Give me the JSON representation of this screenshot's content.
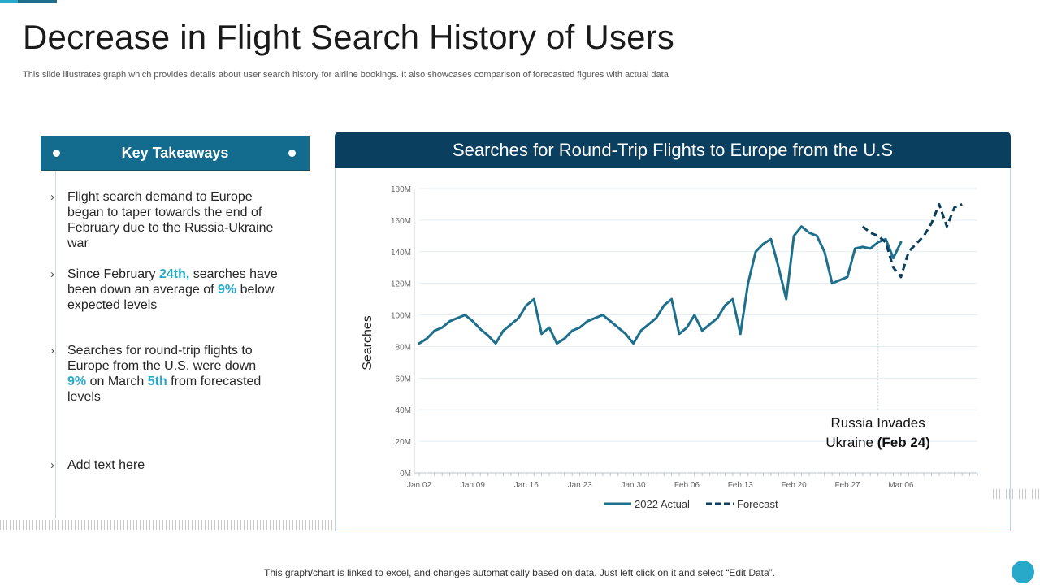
{
  "page": {
    "title": "Decrease in Flight Search History of Users",
    "subtitle": "This slide illustrates graph which provides details about user search history for airline bookings. It also showcases comparison of forecasted figures with actual data",
    "footnote": "This graph/chart is linked to excel,  and changes automatically based on data. Just left click on it and select “Edit Data”."
  },
  "takeaways": {
    "header": "Key Takeaways",
    "bullet_glyph": "›",
    "items": [
      {
        "parts": [
          "Flight search demand to Europe began to taper towards the end of February due to the Russia-Ukraine war"
        ]
      },
      {
        "parts": [
          "Since February ",
          "24th,",
          " searches have been down an average of ",
          "9%",
          " below expected levels"
        ]
      },
      {
        "parts": [
          "Searches for round-trip flights to Europe from the U.S. were down ",
          "9%",
          " on March ",
          "5th",
          " from forecasted levels"
        ]
      },
      {
        "parts": [
          "Add text here"
        ]
      }
    ]
  },
  "colors": {
    "actual": "#1d6f8c",
    "forecast": "#0b3f60",
    "header": "#0b3f60",
    "accent": "#28a9c9"
  },
  "chart_data": {
    "type": "line",
    "title": "Searches for Round-Trip Flights to Europe from the U.S",
    "ylabel": "Searches",
    "xlabel": "",
    "ylim": [
      0,
      180
    ],
    "yticks": [
      0,
      20,
      40,
      60,
      80,
      100,
      120,
      140,
      160,
      180
    ],
    "ytick_labels": [
      "0M",
      "20M",
      "40M",
      "60M",
      "80M",
      "100M",
      "120M",
      "140M",
      "160M",
      "180M"
    ],
    "x_ticks": [
      {
        "index": 0,
        "label": "Jan 02"
      },
      {
        "index": 7,
        "label": "Jan 09"
      },
      {
        "index": 14,
        "label": "Jan 16"
      },
      {
        "index": 21,
        "label": "Jan 23"
      },
      {
        "index": 28,
        "label": "Jan 30"
      },
      {
        "index": 35,
        "label": "Feb 06"
      },
      {
        "index": 42,
        "label": "Feb 13"
      },
      {
        "index": 49,
        "label": "Feb 20"
      },
      {
        "index": 56,
        "label": "Feb 27"
      },
      {
        "index": 63,
        "label": "Mar 06"
      }
    ],
    "n_points": 74,
    "grid": true,
    "legend_position": "bottom",
    "series": [
      {
        "name": "2022 Actual",
        "style": "solid",
        "start_index": 0,
        "values": [
          82,
          85,
          90,
          92,
          96,
          98,
          100,
          96,
          91,
          87,
          82,
          90,
          94,
          98,
          106,
          110,
          88,
          92,
          82,
          85,
          90,
          92,
          96,
          98,
          100,
          96,
          92,
          88,
          82,
          90,
          94,
          98,
          106,
          110,
          88,
          92,
          100,
          90,
          94,
          98,
          106,
          110,
          88,
          120,
          140,
          145,
          148,
          130,
          110,
          150,
          156,
          152,
          150,
          140,
          120,
          122,
          124,
          142,
          143,
          142,
          146,
          148,
          136,
          146
        ]
      },
      {
        "name": "Forecast",
        "style": "dashed",
        "start_index": 58,
        "values": [
          156,
          152,
          150,
          146,
          130,
          124,
          140,
          145,
          150,
          158,
          170,
          156,
          168,
          170
        ]
      }
    ],
    "annotation": {
      "line1": "Russia Invades",
      "line2_plain": "Ukraine ",
      "line2_bold": "(Feb 24)",
      "at_index": 60
    }
  }
}
